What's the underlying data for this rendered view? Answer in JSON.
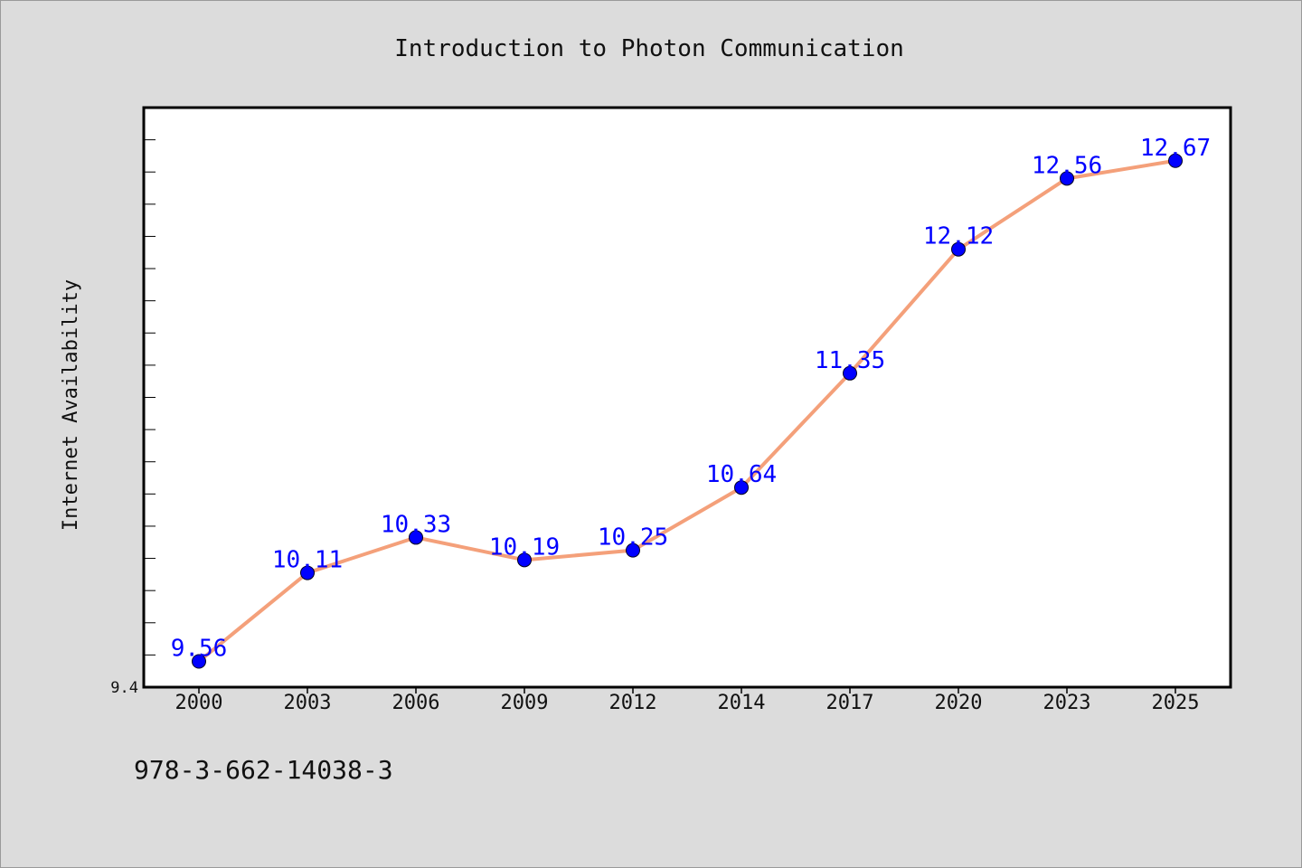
{
  "chart_data": {
    "type": "line",
    "title": "Introduction to Photon Communication",
    "ylabel": "Internet Availability",
    "xlabel": "",
    "categories": [
      "2000",
      "2003",
      "2006",
      "2009",
      "2012",
      "2014",
      "2017",
      "2020",
      "2023",
      "2025"
    ],
    "series": [
      {
        "values": [
          9.56,
          10.11,
          10.33,
          10.19,
          10.25,
          10.64,
          11.35,
          12.12,
          12.56,
          12.67
        ],
        "value_labels": [
          "9.56",
          "10.11",
          "10.33",
          "10.19",
          "10.25",
          "10.64",
          "11.35",
          "12.12",
          "12.56",
          "12.67"
        ]
      }
    ],
    "ylim": [
      9.4,
      13.0
    ],
    "ytick_labels": [
      "9.4"
    ],
    "grid": false,
    "line_color": "#f4a07a",
    "marker_color": "#0000ff",
    "label_color": "#0000ff"
  },
  "footer": {
    "isbn": "978-3-662-14038-3"
  }
}
